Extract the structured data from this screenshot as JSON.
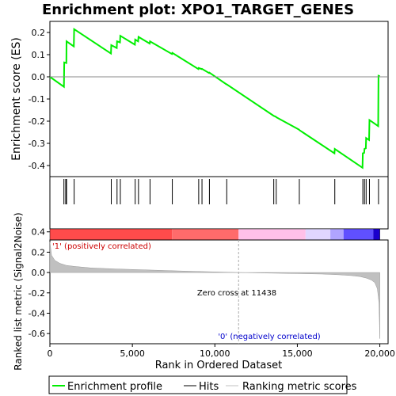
{
  "chart_data": {
    "type": "line",
    "title": "Enrichment plot: XPO1_TARGET_GENES",
    "panels": {
      "enrichment": {
        "ylabel": "Enrichment score (ES)",
        "ylim": [
          -0.45,
          0.25
        ],
        "yticks": [
          "0.2",
          "0.1",
          "0.0",
          "-0.1",
          "-0.2",
          "-0.3",
          "-0.4"
        ],
        "ytick_values": [
          0.2,
          0.1,
          0.0,
          -0.1,
          -0.2,
          -0.3,
          -0.4
        ],
        "series": [
          {
            "name": "Enrichment profile",
            "color": "#00ee00",
            "x": [
              0,
              850,
              870,
              1000,
              1010,
              1450,
              1470,
              3700,
              3720,
              4050,
              4070,
              4250,
              4270,
              5150,
              5170,
              5350,
              5370,
              6050,
              6070,
              7400,
              7420,
              9000,
              9020,
              9200,
              9220,
              9650,
              9670,
              10700,
              10720,
              13550,
              13570,
              13700,
              13720,
              15100,
              15120,
              17250,
              17270,
              18950,
              18970,
              19050,
              19070,
              19150,
              19170,
              19350,
              19370,
              19900,
              19920,
              20000
            ],
            "y": [
              0.0,
              -0.045,
              0.065,
              0.062,
              0.16,
              0.137,
              0.215,
              0.105,
              0.143,
              0.13,
              0.16,
              0.155,
              0.185,
              0.145,
              0.168,
              0.16,
              0.18,
              0.15,
              0.16,
              0.103,
              0.108,
              0.035,
              0.04,
              0.035,
              0.036,
              0.017,
              0.019,
              -0.034,
              -0.034,
              -0.175,
              -0.176,
              -0.18,
              -0.182,
              -0.238,
              -0.24,
              -0.345,
              -0.325,
              -0.41,
              -0.345,
              -0.343,
              -0.325,
              -0.322,
              -0.276,
              -0.285,
              -0.195,
              -0.222,
              0.005,
              0.003
            ]
          }
        ]
      },
      "hits": {
        "positions": [
          850,
          960,
          1010,
          1470,
          3720,
          4070,
          4270,
          5170,
          5370,
          6070,
          7420,
          9020,
          9220,
          9670,
          10720,
          13570,
          13720,
          15120,
          17270,
          18970,
          19070,
          19170,
          19370,
          19920
        ]
      },
      "metric_bar": {
        "colors": [
          "#ff4b4b",
          "#ff6b6b",
          "#ffc0e8",
          "#e0d6ff",
          "#b0a4ff",
          "#6050ff",
          "#1a00cc"
        ]
      },
      "metric": {
        "ylabel": "Ranked list metric (Signal2Noise)",
        "ylim": [
          -0.7,
          0.32
        ],
        "yticks": [
          "0.4",
          "0.2",
          "0.0",
          "-0.2",
          "-0.4",
          "-0.6"
        ],
        "ytick_values": [
          0.4,
          0.2,
          0.0,
          -0.2,
          -0.4,
          -0.6
        ],
        "area": {
          "x": [
            0,
            100,
            300,
            600,
            1000,
            1500,
            2500,
            4000,
            6000,
            8000,
            10000,
            11438,
            13000,
            15000,
            16500,
            17500,
            18300,
            18800,
            19200,
            19500,
            19700,
            19850,
            19950,
            20000
          ],
          "y": [
            0.3,
            0.17,
            0.12,
            0.09,
            0.07,
            0.06,
            0.045,
            0.035,
            0.025,
            0.015,
            0.006,
            0.0,
            -0.005,
            -0.01,
            -0.015,
            -0.022,
            -0.03,
            -0.04,
            -0.055,
            -0.075,
            -0.1,
            -0.16,
            -0.3,
            -0.65
          ]
        },
        "zero_cross_label": "Zero cross at 11438",
        "zero_cross": 11438,
        "positive_label": "'1' (positively correlated)",
        "negative_label": "'0' (negatively correlated)"
      }
    },
    "xlabel": "Rank in Ordered Dataset",
    "xlim": [
      0,
      20500
    ],
    "xticks": [
      "0",
      "5,000",
      "10,000",
      "15,000",
      "20,000"
    ],
    "xtick_values": [
      0,
      5000,
      10000,
      15000,
      20000
    ],
    "legend": {
      "placement": "bottom",
      "items": [
        "Enrichment profile",
        "Hits",
        "Ranking metric scores"
      ]
    }
  }
}
